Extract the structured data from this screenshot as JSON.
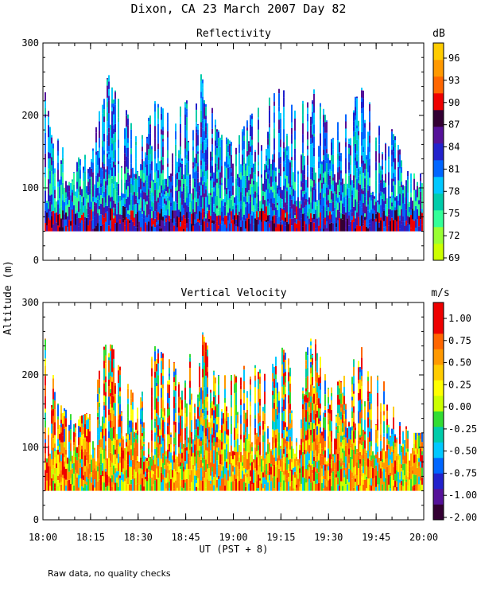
{
  "figure": {
    "title": "Dixon, CA 23 March 2007  Day  82",
    "y_axis_label": "Altitude (m)",
    "x_axis_label": "UT  (PST + 8)",
    "note": "Raw data, no quality checks"
  },
  "chart_data": [
    {
      "type": "heatmap",
      "title": "Reflectivity",
      "x_ticks": [
        "18:00",
        "18:15",
        "18:30",
        "18:45",
        "19:00",
        "19:15",
        "19:30",
        "19:45",
        "20:00"
      ],
      "y_ticks": [
        "0",
        "100",
        "200",
        "300"
      ],
      "xlim": [
        "18:00",
        "20:00"
      ],
      "ylim": [
        0,
        300
      ],
      "colorbar": {
        "unit": "dB",
        "ticks": [
          "69",
          "72",
          "75",
          "78",
          "81",
          "84",
          "87",
          "90",
          "93",
          "96"
        ],
        "colors": [
          "#ccff00",
          "#99ff33",
          "#33ff99",
          "#00ccaa",
          "#00c8ff",
          "#0066ff",
          "#2222cc",
          "#551199",
          "#330033",
          "#ee0000",
          "#ff6600",
          "#ff9900",
          "#ffcc00"
        ]
      },
      "data_altitude_range_m": [
        40,
        260
      ],
      "columns": [
        {
          "time": "18:00",
          "top_m": 240
        },
        {
          "time": "18:05",
          "top_m": 160
        },
        {
          "time": "18:10",
          "top_m": 140
        },
        {
          "time": "18:15",
          "top_m": 150
        },
        {
          "time": "18:20",
          "top_m": 260
        },
        {
          "time": "18:25",
          "top_m": 220
        },
        {
          "time": "18:30",
          "top_m": 160
        },
        {
          "time": "18:35",
          "top_m": 220
        },
        {
          "time": "18:40",
          "top_m": 200
        },
        {
          "time": "18:45",
          "top_m": 220
        },
        {
          "time": "18:50",
          "top_m": 260
        },
        {
          "time": "18:55",
          "top_m": 180
        },
        {
          "time": "19:00",
          "top_m": 160
        },
        {
          "time": "19:05",
          "top_m": 200
        },
        {
          "time": "19:10",
          "top_m": 220
        },
        {
          "time": "19:15",
          "top_m": 240
        },
        {
          "time": "19:20",
          "top_m": 200
        },
        {
          "time": "19:25",
          "top_m": 260
        },
        {
          "time": "19:30",
          "top_m": 180
        },
        {
          "time": "19:35",
          "top_m": 200
        },
        {
          "time": "19:40",
          "top_m": 240
        },
        {
          "time": "19:45",
          "top_m": 200
        },
        {
          "time": "19:50",
          "top_m": 180
        },
        {
          "time": "19:55",
          "top_m": 120
        }
      ]
    },
    {
      "type": "heatmap",
      "title": "Vertical Velocity",
      "x_ticks": [
        "18:00",
        "18:15",
        "18:30",
        "18:45",
        "19:00",
        "19:15",
        "19:30",
        "19:45",
        "20:00"
      ],
      "y_ticks": [
        "0",
        "100",
        "200",
        "300"
      ],
      "xlim": [
        "18:00",
        "20:00"
      ],
      "ylim": [
        0,
        300
      ],
      "colorbar": {
        "unit": "m/s",
        "ticks": [
          "-2.00",
          "-1.00",
          "-0.75",
          "-0.50",
          "-0.25",
          "0.00",
          "0.25",
          "0.50",
          "0.75",
          "1.00"
        ],
        "colors": [
          "#330033",
          "#551199",
          "#2222cc",
          "#0066ff",
          "#00c8ff",
          "#00ccaa",
          "#33dd33",
          "#ccff00",
          "#ffff00",
          "#ffcc00",
          "#ff9900",
          "#ff6600",
          "#ee0000",
          "#ee0000"
        ]
      },
      "data_altitude_range_m": [
        40,
        260
      ],
      "columns": [
        {
          "time": "18:00",
          "top_m": 260
        },
        {
          "time": "18:05",
          "top_m": 160
        },
        {
          "time": "18:10",
          "top_m": 140
        },
        {
          "time": "18:15",
          "top_m": 150
        },
        {
          "time": "18:20",
          "top_m": 260
        },
        {
          "time": "18:25",
          "top_m": 200
        },
        {
          "time": "18:30",
          "top_m": 160
        },
        {
          "time": "18:35",
          "top_m": 240
        },
        {
          "time": "18:40",
          "top_m": 220
        },
        {
          "time": "18:45",
          "top_m": 220
        },
        {
          "time": "18:50",
          "top_m": 260
        },
        {
          "time": "18:55",
          "top_m": 200
        },
        {
          "time": "19:00",
          "top_m": 200
        },
        {
          "time": "19:05",
          "top_m": 220
        },
        {
          "time": "19:10",
          "top_m": 200
        },
        {
          "time": "19:15",
          "top_m": 240
        },
        {
          "time": "19:20",
          "top_m": 200
        },
        {
          "time": "19:25",
          "top_m": 260
        },
        {
          "time": "19:30",
          "top_m": 180
        },
        {
          "time": "19:35",
          "top_m": 200
        },
        {
          "time": "19:40",
          "top_m": 240
        },
        {
          "time": "19:45",
          "top_m": 200
        },
        {
          "time": "19:50",
          "top_m": 180
        },
        {
          "time": "19:55",
          "top_m": 120
        }
      ]
    }
  ]
}
